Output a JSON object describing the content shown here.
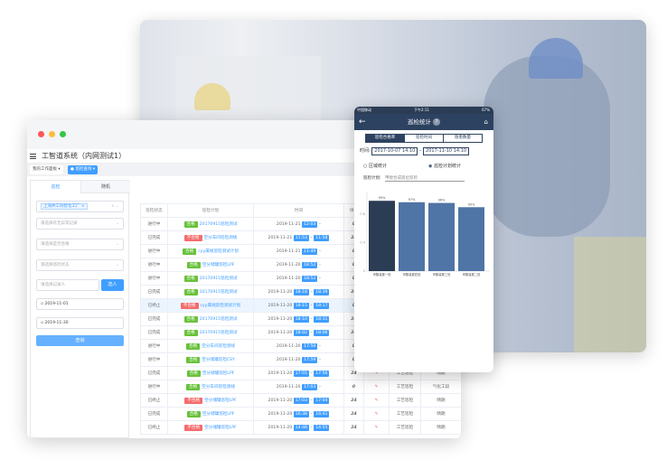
{
  "window": {
    "app_title": "工智道系统（内网测试1）",
    "tabs": [
      {
        "label": "我的工作面板"
      },
      {
        "label": "巡检查询",
        "active": true
      }
    ]
  },
  "filter": {
    "tabs": [
      {
        "label": "巡检",
        "active": true
      },
      {
        "label": "随机"
      }
    ],
    "factory_tag": "上海井工同智化工厂",
    "abnormal_placeholder": "请选择有无异常记录",
    "qualified_placeholder": "请选择是否合格",
    "status_placeholder": "请选择巡检状态",
    "recorder_placeholder": "请选择记录人",
    "pick_person_label": "选人",
    "start_date": "2019-11-01",
    "end_date": "2019-11-30",
    "query_label": "查询"
  },
  "table": {
    "headers": [
      "巡检状态",
      "巡检计划",
      "时间",
      "填写",
      "",
      "",
      ""
    ],
    "rows": [
      {
        "status": "进行中",
        "tag": "合格",
        "plan": "20170915巡检测试",
        "date": "2019-11-21",
        "start": "12:03",
        "end": "",
        "fill": "0",
        "type": "",
        "extra": ""
      },
      {
        "status": "已完成",
        "tag": "不合格",
        "plan": "空分车间巡检测线",
        "date": "2019-11-21",
        "start": "11:53",
        "end": "11:58",
        "fill": "24",
        "type": "",
        "extra": ""
      },
      {
        "status": "进行中",
        "tag": "合格",
        "plan": "cyy属线巡检测试计划",
        "date": "2019-11-21",
        "start": "11:49",
        "end": "",
        "fill": "0",
        "type": "",
        "extra": ""
      },
      {
        "status": "进行中",
        "tag": "合格",
        "plan": "空分储罐巡检LPF",
        "date": "2019-11-20",
        "start": "18:52",
        "end": "",
        "fill": "0",
        "type": "",
        "extra": ""
      },
      {
        "status": "进行中",
        "tag": "合格",
        "plan": "20170915巡检测试",
        "date": "2019-11-20",
        "start": "18:52",
        "end": "",
        "fill": "0",
        "type": "",
        "extra": ""
      },
      {
        "status": "已完成",
        "tag": "合格",
        "plan": "20170915巡检测试",
        "date": "2019-11-20",
        "start": "18:18",
        "end": "18:39",
        "fill": "24",
        "type": "",
        "extra": ""
      },
      {
        "status": "已终止",
        "tag": "不合格",
        "plan": "cyy属线巡检测试计划",
        "date": "2019-11-20",
        "start": "18:15",
        "end": "18:17",
        "fill": "0",
        "type": "",
        "extra": "",
        "highlight": true
      },
      {
        "status": "已完成",
        "tag": "合格",
        "plan": "20170915巡检测试",
        "date": "2019-11-20",
        "start": "18:10",
        "end": "18:31",
        "fill": "24",
        "type": "",
        "extra": ""
      },
      {
        "status": "已完成",
        "tag": "合格",
        "plan": "20170915巡检测试",
        "date": "2019-11-20",
        "start": "18:02",
        "end": "18:06",
        "fill": "24",
        "type": "",
        "extra": ""
      },
      {
        "status": "进行中",
        "tag": "合格",
        "plan": "空分车间巡检测线",
        "date": "2019-11-20",
        "start": "17:59",
        "end": "",
        "fill": "0",
        "type": "",
        "extra": ""
      },
      {
        "status": "进行中",
        "tag": "合格",
        "plan": "空分储罐巡检CSY",
        "date": "2019-11-20",
        "start": "17:59",
        "end": "",
        "fill": "0",
        "type": "",
        "extra": ""
      },
      {
        "status": "已完成",
        "tag": "合格",
        "plan": "空分储罐巡检LPF",
        "date": "2019-11-20",
        "start": "17:55",
        "end": "17:56",
        "fill": "24",
        "type": "工艺巡检",
        "extra": "晴朗"
      },
      {
        "status": "进行中",
        "tag": "合格",
        "plan": "空分车间巡检测线",
        "date": "2019-11-20",
        "start": "17:03",
        "end": "",
        "fill": "0",
        "type": "工艺巡检",
        "extra": "气化工段"
      },
      {
        "status": "已终止",
        "tag": "不合格",
        "plan": "空分储罐巡检LPF",
        "date": "2019-11-20",
        "start": "17:03",
        "end": "17:04",
        "fill": "24",
        "type": "工艺巡检",
        "extra": "晴朗"
      },
      {
        "status": "已完成",
        "tag": "合格",
        "plan": "空分储罐巡检LPF",
        "date": "2019-11-20",
        "start": "16:38",
        "end": "16:41",
        "fill": "24",
        "type": "工艺巡检",
        "extra": "晴朗"
      },
      {
        "status": "已终止",
        "tag": "不合格",
        "plan": "空分储罐巡检LPF",
        "date": "2019-11-20",
        "start": "14:48",
        "end": "14:55",
        "fill": "24",
        "type": "工艺巡检",
        "extra": "晴朗"
      }
    ]
  },
  "phone": {
    "carrier": "中国移动",
    "time": "下午2:11",
    "battery": "67%",
    "title": "巡检统计",
    "tabs": [
      {
        "label": "巡检合格率",
        "active": true
      },
      {
        "label": "巡检时间"
      },
      {
        "label": "隐患数量"
      }
    ],
    "time_label": "时间:",
    "start": "2017-10-07 14:10",
    "sep": "–",
    "end": "2017-11-10 14:10",
    "radio_area": "区域统计",
    "radio_plan": "巡检计划统计",
    "plan_label": "巡检计划:",
    "plan_value": "甲醇合成岗位巡检"
  },
  "colors": {
    "primary": "#409eff",
    "pass": "#67c23a",
    "fail": "#f56c6c",
    "phone_nav": "#2d4260",
    "bar_first": "#2b3c55",
    "bar": "#4f74a6"
  },
  "chart_data": {
    "type": "bar",
    "categories": [
      "甲醇装置一班",
      "甲醇装置四班",
      "甲醇装置三班",
      "甲醇装置二班"
    ],
    "values": [
      0.99,
      0.97,
      0.96,
      0.9
    ],
    "data_labels": [
      "99%",
      "97%",
      "96%",
      "90%"
    ],
    "yticks": [
      "0",
      "0.4",
      "0.8"
    ],
    "ylim": [
      0,
      1.12
    ]
  }
}
